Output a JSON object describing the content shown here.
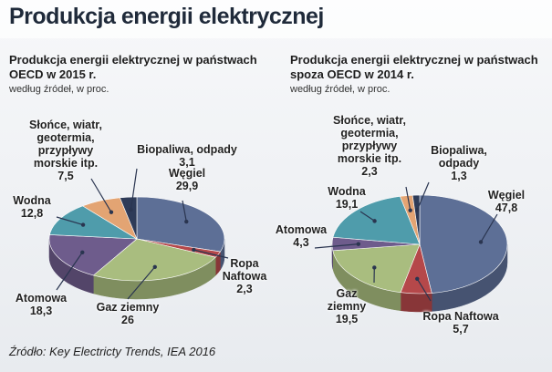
{
  "title": "Produkcja energii elektrycznej",
  "source": "Źródło: Key Electricty Trends, IEA 2016",
  "chart_data": [
    {
      "type": "pie",
      "title": "Produkcja energii elektrycznej w państwach OECD w 2015 r.",
      "subtitle": "według źródeł, w proc.",
      "categories": [
        "Węgiel",
        "Ropa\nNaftowa",
        "Gaz ziemny",
        "Atomowa",
        "Wodna",
        "Słońce, wiatr,\ngeotermia,\nprzypływy\nmorskie itp.",
        "Biopaliwa, odpady"
      ],
      "values": [
        29.9,
        2.3,
        26,
        18.3,
        12.8,
        7.5,
        3.1
      ],
      "value_labels": [
        "29,9",
        "2,3",
        "26",
        "18,3",
        "12,8",
        "7,5",
        "3,1"
      ],
      "colors": [
        "#5d6f96",
        "#b5484a",
        "#a9bd7f",
        "#6e5c8c",
        "#4f9cab",
        "#e3a473",
        "#2e3b58"
      ]
    },
    {
      "type": "pie",
      "title": "Produkcja energii elektrycznej w państwach spoza OECD w 2014 r.",
      "subtitle": "według źródeł, w proc.",
      "categories": [
        "Węgiel",
        "Ropa Naftowa",
        "Gaz\nziemny",
        "Atomowa",
        "Wodna",
        "Słońce, wiatr,\ngeotermia,\nprzypływy\nmorskie itp.",
        "Biopaliwa,\nodpady"
      ],
      "values": [
        47.8,
        5.7,
        19.5,
        4.3,
        19.1,
        2.3,
        1.3
      ],
      "value_labels": [
        "47,8",
        "5,7",
        "19,5",
        "4,3",
        "19,1",
        "2,3",
        "1,3"
      ],
      "colors": [
        "#5d6f96",
        "#b5484a",
        "#a9bd7f",
        "#6e5c8c",
        "#4f9cab",
        "#e3a473",
        "#2e3b58"
      ]
    }
  ]
}
